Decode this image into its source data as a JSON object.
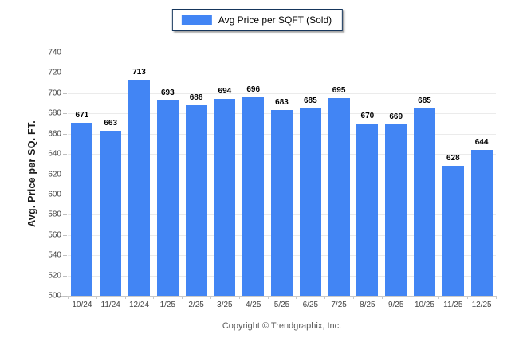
{
  "chart_data": {
    "type": "bar",
    "title": "",
    "legend": "Avg Price per SQFT (Sold)",
    "legend_position": "top-center",
    "ylabel": "Avg. Price per SQ. FT.",
    "xlabel": "",
    "footer": "Copyright © Trendgraphix, Inc.",
    "categories": [
      "10/24",
      "11/24",
      "12/24",
      "1/25",
      "2/25",
      "3/25",
      "4/25",
      "5/25",
      "6/25",
      "7/25",
      "8/25",
      "9/25",
      "10/25",
      "11/25",
      "12/25"
    ],
    "values": [
      671,
      663,
      713,
      693,
      688,
      694,
      696,
      683,
      685,
      695,
      670,
      669,
      685,
      628,
      644
    ],
    "ylim": [
      500,
      740
    ],
    "ytick_step": 20,
    "grid": "horizontal",
    "colors": {
      "bar": "#4285F4",
      "grid": "#ebebeb",
      "axis": "#c9c9c9",
      "tick_label": "#454545",
      "value_label": "#000000",
      "footer_text": "#595959",
      "legend_border": "#16365C",
      "background": "#ffffff"
    }
  }
}
